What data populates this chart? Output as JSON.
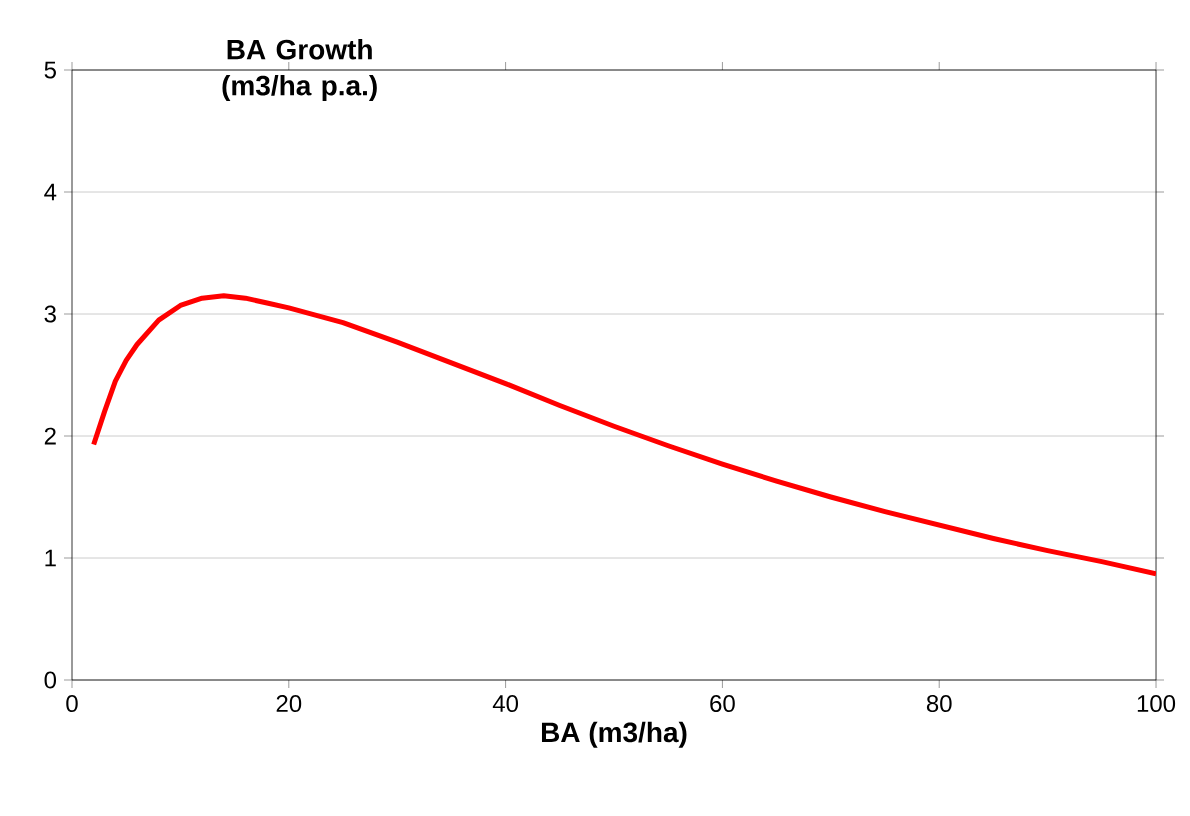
{
  "chart_data": {
    "type": "line",
    "xlabel": "BA (m3/ha)",
    "ylabel": "BA Growth (m3/ha p.a.)",
    "xlim": [
      0,
      100
    ],
    "ylim": [
      0,
      5
    ],
    "xticks": [
      0,
      20,
      40,
      60,
      80,
      100
    ],
    "yticks": [
      0,
      1,
      2,
      3,
      4,
      5
    ],
    "grid": "y",
    "marker": "none",
    "line_style": "solid",
    "series": [
      {
        "color": "#ff0000",
        "x": [
          2,
          3,
          4,
          5,
          6,
          8,
          10,
          12,
          14,
          16,
          18,
          20,
          25,
          30,
          35,
          40,
          45,
          50,
          55,
          60,
          65,
          70,
          75,
          80,
          85,
          90,
          95,
          100
        ],
        "values": [
          1.93,
          2.2,
          2.45,
          2.62,
          2.75,
          2.95,
          3.07,
          3.13,
          3.15,
          3.13,
          3.09,
          3.05,
          2.93,
          2.77,
          2.6,
          2.43,
          2.25,
          2.08,
          1.92,
          1.77,
          1.63,
          1.5,
          1.38,
          1.27,
          1.16,
          1.06,
          0.97,
          0.87
        ]
      }
    ]
  }
}
